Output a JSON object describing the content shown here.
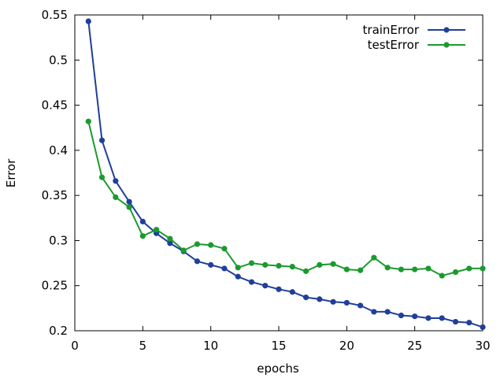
{
  "chart_data": {
    "type": "line",
    "title": "",
    "xlabel": "epochs",
    "ylabel": "Error",
    "xlim": [
      0,
      30
    ],
    "ylim": [
      0.2,
      0.55
    ],
    "xticks": [
      "0",
      "5",
      "10",
      "15",
      "20",
      "25",
      "30"
    ],
    "yticks": [
      "0.2",
      "0.25",
      "0.3",
      "0.35",
      "0.4",
      "0.45",
      "0.5",
      "0.55"
    ],
    "grid": false,
    "legend_position": "top-right",
    "x": [
      1,
      2,
      3,
      4,
      5,
      6,
      7,
      8,
      9,
      10,
      11,
      12,
      13,
      14,
      15,
      16,
      17,
      18,
      19,
      20,
      21,
      22,
      23,
      24,
      25,
      26,
      27,
      28,
      29,
      30
    ],
    "series": [
      {
        "name": "trainError",
        "color": "#1f3f99",
        "values": [
          0.543,
          0.411,
          0.366,
          0.343,
          0.321,
          0.308,
          0.297,
          0.288,
          0.277,
          0.273,
          0.269,
          0.26,
          0.254,
          0.25,
          0.246,
          0.243,
          0.237,
          0.235,
          0.232,
          0.231,
          0.228,
          0.221,
          0.221,
          0.217,
          0.216,
          0.214,
          0.214,
          0.21,
          0.209,
          0.204
        ]
      },
      {
        "name": "testError",
        "color": "#1a9a2e",
        "values": [
          0.432,
          0.37,
          0.348,
          0.337,
          0.305,
          0.312,
          0.302,
          0.289,
          0.296,
          0.295,
          0.291,
          0.27,
          0.275,
          0.273,
          0.272,
          0.271,
          0.266,
          0.273,
          0.274,
          0.268,
          0.267,
          0.281,
          0.27,
          0.268,
          0.268,
          0.269,
          0.261,
          0.265,
          0.269,
          0.269
        ]
      }
    ]
  }
}
